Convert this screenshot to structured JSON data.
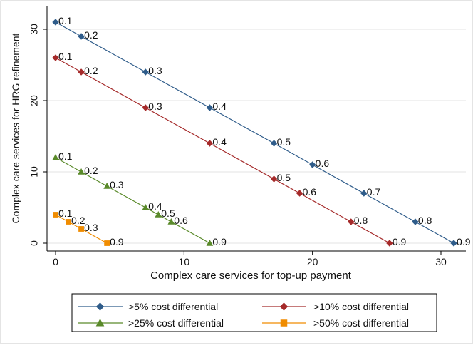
{
  "chart_data": {
    "type": "line",
    "title": "",
    "xlabel": "Complex care services for top-up payment",
    "ylabel": "Complex care services for HRG refinement",
    "xlim": [
      0,
      33
    ],
    "ylim": [
      0,
      32
    ],
    "xticks": [
      0,
      10,
      20,
      30
    ],
    "yticks": [
      0,
      10,
      20,
      30
    ],
    "grid": "horizontal",
    "legend_position": "bottom",
    "series": [
      {
        "name": ">5% cost differential",
        "color": "#2f5c8a",
        "marker": "diamond",
        "points": [
          {
            "x": 0,
            "y": 31,
            "label": "0.1"
          },
          {
            "x": 2,
            "y": 29,
            "label": "0.2"
          },
          {
            "x": 7,
            "y": 24,
            "label": "0.3"
          },
          {
            "x": 12,
            "y": 19,
            "label": "0.4"
          },
          {
            "x": 17,
            "y": 14,
            "label": "0.5"
          },
          {
            "x": 20,
            "y": 11,
            "label": "0.6"
          },
          {
            "x": 24,
            "y": 7,
            "label": "0.7"
          },
          {
            "x": 28,
            "y": 3,
            "label": "0.8"
          },
          {
            "x": 31,
            "y": 0,
            "label": "0.9"
          }
        ]
      },
      {
        "name": ">10% cost differential",
        "color": "#a52a2a",
        "marker": "diamond",
        "points": [
          {
            "x": 0,
            "y": 26,
            "label": "0.1"
          },
          {
            "x": 2,
            "y": 24,
            "label": "0.2"
          },
          {
            "x": 7,
            "y": 19,
            "label": "0.3"
          },
          {
            "x": 12,
            "y": 14,
            "label": "0.4"
          },
          {
            "x": 17,
            "y": 9,
            "label": "0.5"
          },
          {
            "x": 19,
            "y": 7,
            "label": "0.6"
          },
          {
            "x": 23,
            "y": 3,
            "label": "0.8"
          },
          {
            "x": 26,
            "y": 0,
            "label": "0.9"
          }
        ]
      },
      {
        "name": ">25% cost differential",
        "color": "#5a8a2a",
        "marker": "triangle",
        "points": [
          {
            "x": 0,
            "y": 12,
            "label": "0.1"
          },
          {
            "x": 2,
            "y": 10,
            "label": "0.2"
          },
          {
            "x": 4,
            "y": 8,
            "label": "0.3"
          },
          {
            "x": 7,
            "y": 5,
            "label": "0.4"
          },
          {
            "x": 8,
            "y": 4,
            "label": "0.5"
          },
          {
            "x": 9,
            "y": 3,
            "label": "0.6"
          },
          {
            "x": 12,
            "y": 0,
            "label": "0.9"
          }
        ]
      },
      {
        "name": ">50% cost differential",
        "color": "#f08c00",
        "marker": "square",
        "points": [
          {
            "x": 0,
            "y": 4,
            "label": "0.1"
          },
          {
            "x": 1,
            "y": 3,
            "label": "0.2"
          },
          {
            "x": 2,
            "y": 2,
            "label": "0.3"
          },
          {
            "x": 4,
            "y": 0,
            "label": "0.9"
          }
        ]
      }
    ]
  }
}
